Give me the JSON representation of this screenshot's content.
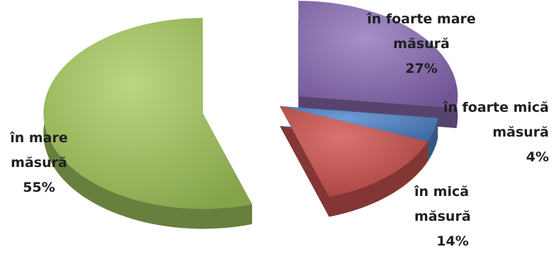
{
  "chart_data": {
    "type": "pie",
    "style": "3d-exploded",
    "legend": "none",
    "title": "",
    "slices": [
      {
        "name_line1": "în foarte mare",
        "name_line2": "măsură",
        "value": 27,
        "value_label": "27%",
        "color": "#8064a2"
      },
      {
        "name_line1": "în foarte mică",
        "name_line2": "măsură",
        "value": 4,
        "value_label": "4%",
        "color": "#4f81bd"
      },
      {
        "name_line1": "în mică",
        "name_line2": "măsură",
        "value": 14,
        "value_label": "14%",
        "color": "#c0504d"
      },
      {
        "name_line1": "în mare",
        "name_line2": "măsură",
        "value": 55,
        "value_label": "55%",
        "color": "#9bbb59"
      }
    ]
  }
}
